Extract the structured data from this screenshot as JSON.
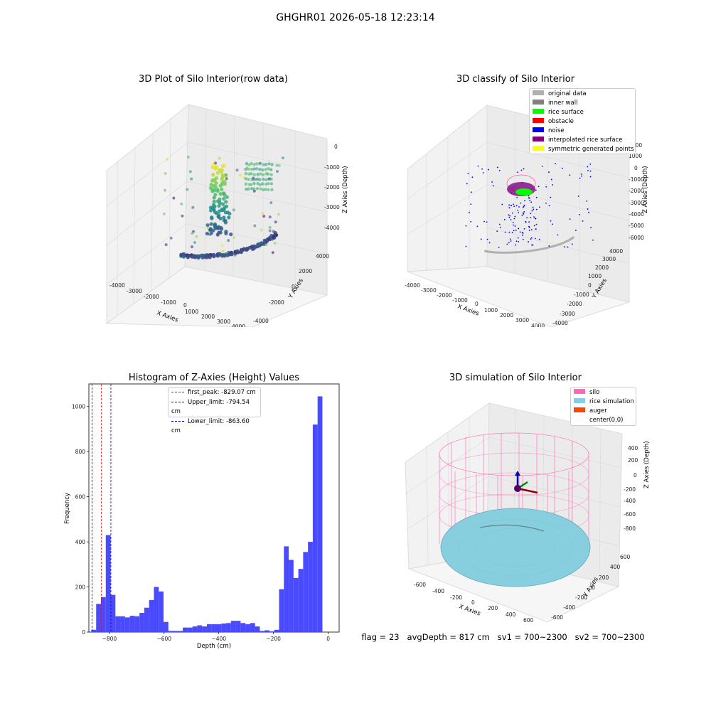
{
  "page": {
    "suptitle": "GHGHR01 2026-05-18 12:23:14",
    "footer": "flag = 23   avgDepth = 817 cm   sv1 = 700~2300   sv2 = 700~2300"
  },
  "colors": {
    "histogram_bar": "#4a4aff",
    "first_peak_line": "#ff0000",
    "limit_lines": "#0000cc",
    "silo_wire": "#ff77bb",
    "rice": "#87cedf"
  },
  "chart_data": [
    {
      "type": "scatter",
      "subtype": "3d",
      "title": "3D Plot of Silo Interior(row data)",
      "xlabel": "X Axies",
      "ylabel": "Y Axies",
      "zlabel": "Z Axies (Depth)",
      "x_ticks": [
        "-4000",
        "-3000",
        "-2000",
        "-1000",
        "0",
        "1000",
        "2000",
        "3000",
        "4000"
      ],
      "y_ticks": [
        "-4000",
        "-2000",
        "0",
        "2000",
        "4000"
      ],
      "z_ticks": [
        "0",
        "-1000",
        "-2000",
        "-3000",
        "-4000"
      ],
      "colormap": "viridis"
    },
    {
      "type": "scatter",
      "subtype": "3d",
      "title": "3D classify of Silo Interior",
      "legend_position": "top-right",
      "legend": [
        {
          "label": "original data",
          "color": "#b0b0b0"
        },
        {
          "label": "inner wall",
          "color": "#808080"
        },
        {
          "label": "rice surface",
          "color": "#00ff00"
        },
        {
          "label": "obstacle",
          "color": "#ff0000"
        },
        {
          "label": "noise",
          "color": "#0000ff"
        },
        {
          "label": "interpolated rice surface",
          "color": "#800080"
        },
        {
          "label": "symmetric generated points",
          "color": "#ffff00"
        }
      ],
      "xlabel": "X Axies",
      "ylabel": "Y Axies",
      "zlabel": "Z Axies (Depth)",
      "x_ticks": [
        "-4000",
        "-3000",
        "-2000",
        "-1000",
        "0",
        "1000",
        "2000",
        "3000",
        "4000"
      ],
      "y_ticks": [
        "-4000",
        "-3000",
        "-2000",
        "-1000",
        "0",
        "1000",
        "2000",
        "3000",
        "4000"
      ],
      "z_ticks": [
        "2000",
        "1000",
        "0",
        "-1000",
        "-2000",
        "-3000",
        "-4000",
        "-5000",
        "-6000"
      ]
    },
    {
      "type": "bar",
      "subtype": "histogram",
      "title": "Histogram of Z-Axies (Height) Values",
      "xlabel": "Depth (cm)",
      "ylabel": "Frequency",
      "xlim": [
        -875,
        40
      ],
      "ylim": [
        0,
        1100
      ],
      "x_ticks": [
        -800,
        -600,
        -400,
        -200,
        0
      ],
      "y_ticks": [
        0,
        200,
        400,
        600,
        800,
        1000
      ],
      "bin_width": 17.6,
      "bin_start": -866,
      "values": [
        10,
        125,
        155,
        430,
        165,
        70,
        70,
        65,
        72,
        70,
        85,
        108,
        142,
        200,
        180,
        45,
        5,
        5,
        5,
        20,
        20,
        25,
        30,
        25,
        35,
        35,
        35,
        38,
        40,
        50,
        50,
        40,
        35,
        40,
        25,
        5,
        8,
        3,
        10,
        190,
        380,
        320,
        240,
        280,
        355,
        400,
        920,
        1045
      ],
      "vlines": [
        {
          "label": "first_peak: -829.07 cm",
          "x": -829.07,
          "color": "#ff0000"
        },
        {
          "label": "Upper_limit: -794.54 cm",
          "x": -794.54,
          "color": "#0000cc"
        },
        {
          "label": "Lower_limit: -863.60 cm",
          "x": -863.6,
          "color": "#0000cc"
        }
      ],
      "grid": false
    },
    {
      "type": "scatter",
      "subtype": "3d-surface",
      "title": "3D simulation of Silo Interior",
      "legend_position": "top-right",
      "legend": [
        {
          "label": "silo",
          "color": "#ff69b4"
        },
        {
          "label": "rice simulation",
          "color": "#87ceeb"
        },
        {
          "label": "auger",
          "color": "#ff4500"
        },
        {
          "label": "center(0,0)",
          "color": "#ffffff"
        }
      ],
      "xlabel": "X Axies",
      "ylabel": "Y Axies",
      "zlabel": "Z Axies (Depth)",
      "x_ticks": [
        "-600",
        "-400",
        "-200",
        "0",
        "200",
        "400",
        "600"
      ],
      "y_ticks": [
        "-600",
        "-400",
        "-200",
        "0",
        "200",
        "400",
        "600"
      ],
      "z_ticks": [
        "400",
        "200",
        "0",
        "-200",
        "-400",
        "-600",
        "-800"
      ]
    }
  ]
}
